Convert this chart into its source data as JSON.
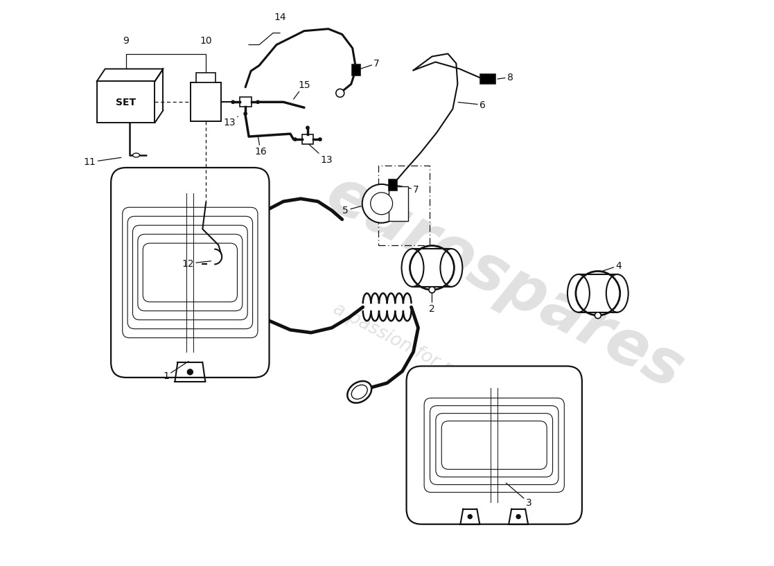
{
  "bg": "#ffffff",
  "lc": "#111111",
  "wm1": "eurospares",
  "wm2": "a passion for parts since 1985",
  "wm_col": "#c8c8c8",
  "wm_alpha": 0.55,
  "figw": 11.0,
  "figh": 8.0,
  "dpi": 100,
  "xlim": [
    0,
    11
  ],
  "ylim": [
    0,
    8
  ]
}
